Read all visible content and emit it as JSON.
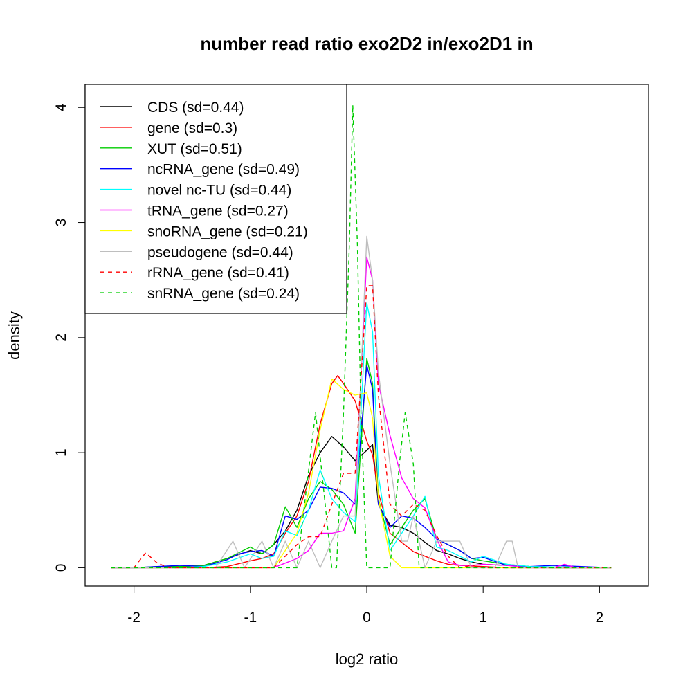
{
  "chart_data": {
    "type": "line",
    "title": "number read ratio exo2D2 in/exo2D1 in",
    "xlabel": "log2 ratio",
    "ylabel": "density",
    "xlim": [
      -2.42,
      2.42
    ],
    "ylim": [
      -0.16,
      4.2
    ],
    "x_ticks": [
      -2,
      -1,
      0,
      1,
      2
    ],
    "y_ticks": [
      0,
      1,
      2,
      3,
      4
    ],
    "legend_position": "top-left",
    "series": [
      {
        "name": "CDS (sd=0.44)",
        "color": "#000000",
        "dash": "solid",
        "x": [
          -2.2,
          -2.0,
          -1.8,
          -1.6,
          -1.4,
          -1.2,
          -1.0,
          -0.9,
          -0.8,
          -0.7,
          -0.6,
          -0.5,
          -0.4,
          -0.3,
          -0.2,
          -0.1,
          0.0,
          0.05,
          0.1,
          0.2,
          0.3,
          0.4,
          0.5,
          0.6,
          0.7,
          0.8,
          0.9,
          1.0,
          1.2,
          1.4,
          1.6,
          1.8,
          2.0,
          2.1
        ],
        "y": [
          0,
          0,
          0,
          0.01,
          0.02,
          0.08,
          0.15,
          0.12,
          0.2,
          0.32,
          0.5,
          0.8,
          1.0,
          1.14,
          1.05,
          0.93,
          1.02,
          1.07,
          0.55,
          0.37,
          0.35,
          0.3,
          0.22,
          0.15,
          0.12,
          0.08,
          0.05,
          0.03,
          0.02,
          0.01,
          0,
          0,
          0,
          0
        ]
      },
      {
        "name": "gene (sd=0.3)",
        "color": "#ff0000",
        "dash": "solid",
        "x": [
          -2.2,
          -2.0,
          -1.6,
          -1.4,
          -1.2,
          -1.0,
          -0.9,
          -0.8,
          -0.7,
          -0.6,
          -0.5,
          -0.4,
          -0.3,
          -0.25,
          -0.2,
          -0.1,
          0.0,
          0.05,
          0.1,
          0.2,
          0.3,
          0.4,
          0.5,
          0.6,
          0.7,
          0.8,
          1.0,
          1.2,
          1.4,
          1.6,
          2.1
        ],
        "y": [
          0,
          0,
          0,
          0,
          0.01,
          0.06,
          0.08,
          0.12,
          0.3,
          0.45,
          0.75,
          1.25,
          1.6,
          1.67,
          1.6,
          1.45,
          1.1,
          0.98,
          0.65,
          0.3,
          0.22,
          0.14,
          0.1,
          0.06,
          0.03,
          0.02,
          0.01,
          0,
          0,
          0,
          0
        ]
      },
      {
        "name": "XUT (sd=0.51)",
        "color": "#00cd00",
        "dash": "solid",
        "x": [
          -2.2,
          -2.0,
          -1.8,
          -1.6,
          -1.4,
          -1.2,
          -1.1,
          -1.0,
          -0.9,
          -0.8,
          -0.7,
          -0.6,
          -0.5,
          -0.4,
          -0.3,
          -0.2,
          -0.1,
          0.0,
          0.05,
          0.1,
          0.2,
          0.3,
          0.4,
          0.5,
          0.6,
          0.7,
          0.8,
          0.9,
          1.0,
          1.2,
          1.4,
          1.6,
          2.1
        ],
        "y": [
          0,
          0,
          0.01,
          0.01,
          0.02,
          0.08,
          0.13,
          0.18,
          0.12,
          0.2,
          0.53,
          0.35,
          0.6,
          0.75,
          0.68,
          0.55,
          0.3,
          1.82,
          1.6,
          0.6,
          0.2,
          0.35,
          0.5,
          0.6,
          0.25,
          0.2,
          0.15,
          0.08,
          0.06,
          0.03,
          0.01,
          0,
          0
        ]
      },
      {
        "name": "ncRNA_gene (sd=0.49)",
        "color": "#0000ff",
        "dash": "solid",
        "x": [
          -2.2,
          -2.0,
          -1.8,
          -1.6,
          -1.4,
          -1.2,
          -1.1,
          -1.0,
          -0.9,
          -0.8,
          -0.7,
          -0.6,
          -0.5,
          -0.4,
          -0.3,
          -0.2,
          -0.1,
          0.0,
          0.05,
          0.1,
          0.2,
          0.3,
          0.4,
          0.5,
          0.6,
          0.7,
          0.8,
          0.9,
          1.0,
          1.2,
          1.4,
          1.6,
          2.1
        ],
        "y": [
          0,
          0,
          0.01,
          0.02,
          0.01,
          0.07,
          0.12,
          0.14,
          0.15,
          0.1,
          0.45,
          0.42,
          0.5,
          0.7,
          0.69,
          0.65,
          0.55,
          1.76,
          1.55,
          0.55,
          0.35,
          0.45,
          0.43,
          0.35,
          0.25,
          0.2,
          0.15,
          0.08,
          0.09,
          0.02,
          0.01,
          0.02,
          0
        ]
      },
      {
        "name": "novel nc-TU (sd=0.44)",
        "color": "#00ffff",
        "dash": "solid",
        "x": [
          -2.2,
          -2.0,
          -1.6,
          -1.4,
          -1.2,
          -1.0,
          -0.9,
          -0.8,
          -0.7,
          -0.6,
          -0.5,
          -0.4,
          -0.3,
          -0.2,
          -0.1,
          0.0,
          0.05,
          0.1,
          0.2,
          0.3,
          0.4,
          0.5,
          0.6,
          0.7,
          0.8,
          0.9,
          1.0,
          1.2,
          1.4,
          2.1
        ],
        "y": [
          0,
          0,
          0,
          0.01,
          0.05,
          0.12,
          0.08,
          0.1,
          0.32,
          0.28,
          0.5,
          0.85,
          0.6,
          0.48,
          0.4,
          2.3,
          2.05,
          0.8,
          0.15,
          0.3,
          0.45,
          0.62,
          0.18,
          0.15,
          0.1,
          0.05,
          0.1,
          0.03,
          0.01,
          0
        ]
      },
      {
        "name": "tRNA_gene (sd=0.27)",
        "color": "#ff00ff",
        "dash": "solid",
        "x": [
          -2.2,
          -1.0,
          -0.9,
          -0.8,
          -0.7,
          -0.6,
          -0.5,
          -0.4,
          -0.3,
          -0.2,
          -0.1,
          0.0,
          0.05,
          0.1,
          0.2,
          0.3,
          0.4,
          0.5,
          0.6,
          0.7,
          0.8,
          0.9,
          1.0,
          1.2,
          1.4,
          1.6,
          1.7,
          1.8,
          2.1
        ],
        "y": [
          0,
          0,
          0,
          0,
          0.04,
          0.08,
          0.15,
          0.3,
          0.3,
          0.32,
          0.6,
          2.7,
          2.5,
          1.6,
          1.15,
          0.78,
          0.6,
          0.52,
          0.25,
          0.05,
          0.02,
          0.02,
          0.03,
          0.02,
          0,
          0,
          0.03,
          0,
          0
        ]
      },
      {
        "name": "snoRNA_gene (sd=0.21)",
        "color": "#ffff00",
        "dash": "solid",
        "x": [
          -2.2,
          -1.0,
          -0.9,
          -0.8,
          -0.7,
          -0.6,
          -0.5,
          -0.4,
          -0.3,
          -0.2,
          -0.1,
          0.0,
          0.05,
          0.1,
          0.2,
          0.3,
          0.4,
          0.5,
          0.6,
          0.7,
          2.1
        ],
        "y": [
          0,
          0,
          0,
          0,
          0.15,
          0.3,
          0.65,
          1.2,
          1.64,
          1.55,
          1.5,
          1.52,
          1.3,
          0.6,
          0.1,
          0,
          0,
          0,
          0,
          0,
          0
        ]
      },
      {
        "name": "pseudogene (sd=0.44)",
        "color": "#bebebe",
        "dash": "solid",
        "x": [
          -2.2,
          -1.3,
          -1.15,
          -1.05,
          -0.9,
          -0.8,
          -0.7,
          -0.6,
          -0.5,
          -0.4,
          -0.3,
          -0.2,
          -0.1,
          0.0,
          0.05,
          0.1,
          0.2,
          0.3,
          0.35,
          0.4,
          0.5,
          0.6,
          0.7,
          0.8,
          0.9,
          1.0,
          1.1,
          1.2,
          1.25,
          1.3,
          1.4,
          2.1
        ],
        "y": [
          0,
          0,
          0.23,
          0,
          0.23,
          0,
          0.23,
          0,
          0.23,
          0,
          0.23,
          0.45,
          0.45,
          2.88,
          2.5,
          1.7,
          0.9,
          0.23,
          0.23,
          0.45,
          0,
          0.23,
          0.23,
          0.23,
          0,
          0,
          0,
          0.23,
          0.23,
          0,
          0,
          0
        ]
      },
      {
        "name": "rRNA_gene (sd=0.41)",
        "color": "#ff0000",
        "dash": "dashed",
        "x": [
          -2.2,
          -2.0,
          -1.9,
          -1.8,
          -1.7,
          -1.0,
          -0.9,
          -0.8,
          -0.7,
          -0.6,
          -0.5,
          -0.4,
          -0.3,
          -0.2,
          -0.1,
          0.0,
          0.05,
          0.1,
          0.2,
          0.3,
          0.4,
          0.5,
          0.6,
          0.7,
          0.8,
          0.9,
          1.0,
          2.1
        ],
        "y": [
          0,
          0,
          0.13,
          0.04,
          0,
          0,
          0,
          0,
          0.1,
          0.2,
          0.27,
          0.27,
          0.55,
          0.82,
          0.82,
          2.45,
          2.45,
          1.5,
          0.55,
          0.45,
          0.55,
          0.5,
          0.28,
          0.1,
          0,
          0.02,
          0,
          0
        ]
      },
      {
        "name": "snRNA_gene (sd=0.24)",
        "color": "#00cd00",
        "dash": "dashed",
        "x": [
          -2.2,
          -0.6,
          -0.44,
          -0.3,
          -0.26,
          -0.2,
          -0.15,
          -0.12,
          -0.08,
          -0.05,
          0.0,
          0.03,
          0.2,
          0.28,
          0.33,
          0.4,
          0.45,
          2.1
        ],
        "y": [
          0,
          0,
          1.35,
          0,
          0,
          1.35,
          2.8,
          4.02,
          2.8,
          1.35,
          0,
          0,
          0,
          0.9,
          1.35,
          0.9,
          0,
          0
        ]
      }
    ]
  }
}
